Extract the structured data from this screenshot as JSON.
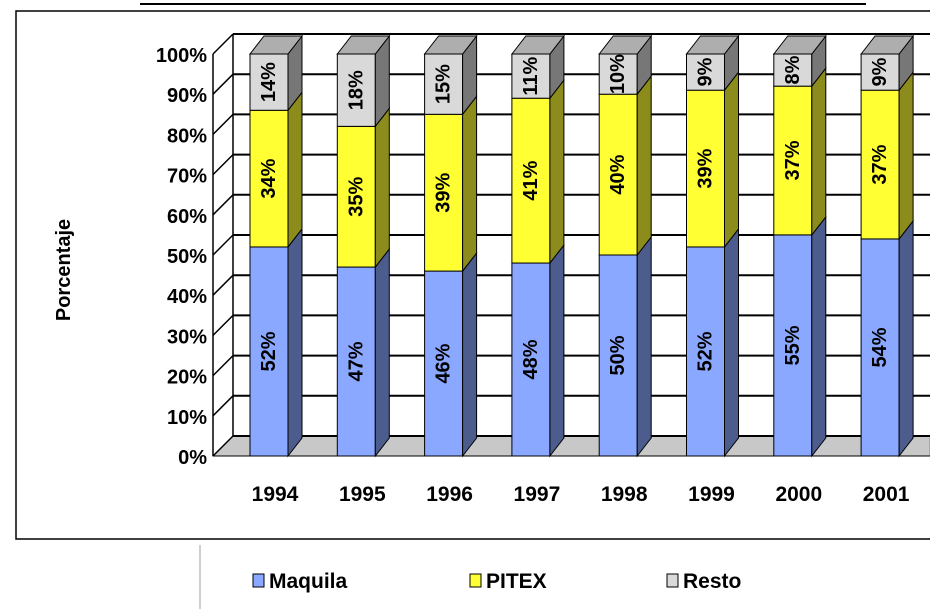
{
  "chart_data": {
    "type": "bar",
    "stacked": true,
    "percent_stacked": true,
    "three_d": true,
    "categories": [
      "1994",
      "1995",
      "1996",
      "1997",
      "1998",
      "1999",
      "2000",
      "2001"
    ],
    "series": [
      {
        "name": "Maquila",
        "values": [
          52,
          47,
          46,
          48,
          50,
          52,
          55,
          54
        ],
        "labels": [
          "52%",
          "47%",
          "46%",
          "48%",
          "50%",
          "52%",
          "55%",
          "54%"
        ],
        "color": "#8aa8ff"
      },
      {
        "name": "PITEX",
        "values": [
          34,
          35,
          39,
          41,
          40,
          39,
          37,
          37
        ],
        "labels": [
          "34%",
          "35%",
          "39%",
          "41%",
          "40%",
          "39%",
          "37%",
          "37%"
        ],
        "color": "#ffff33"
      },
      {
        "name": "Resto",
        "values": [
          14,
          18,
          15,
          11,
          10,
          9,
          8,
          9
        ],
        "labels": [
          "14%",
          "18%",
          "15%",
          "11%",
          "10%",
          "9%",
          "8%",
          "9%"
        ],
        "color": "#d9d9d9"
      }
    ],
    "ylabel": "Porcentaje",
    "xlabel": "",
    "ylim": [
      0,
      100
    ],
    "yticks": [
      "0%",
      "10%",
      "20%",
      "30%",
      "40%",
      "50%",
      "60%",
      "70%",
      "80%",
      "90%",
      "100%"
    ],
    "grid": true,
    "legend_position": "bottom"
  }
}
